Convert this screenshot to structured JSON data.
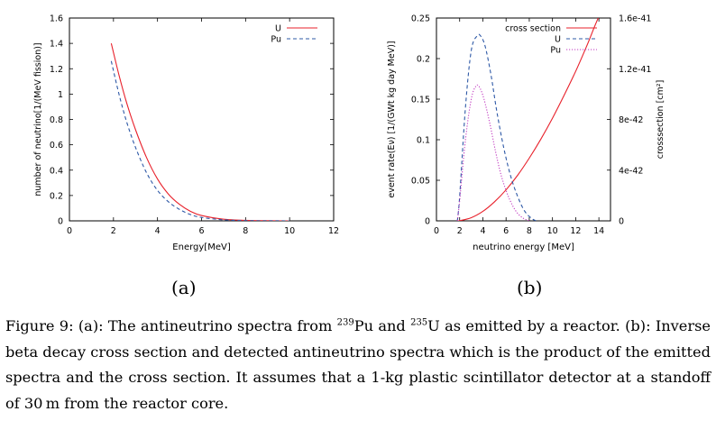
{
  "chart_data": [
    {
      "type": "line",
      "panel_label": "(a)",
      "xlabel": "Energy[MeV]",
      "ylabel": "number of neutrino[1/(MeV fission)]",
      "xlim": [
        0,
        12
      ],
      "ylim": [
        0,
        1.6
      ],
      "xticks": [
        "0",
        "2",
        "4",
        "6",
        "8",
        "10",
        "12"
      ],
      "yticks": [
        "0",
        "0.2",
        "0.4",
        "0.6",
        "0.8",
        "1",
        "1.2",
        "1.4",
        "1.6"
      ],
      "legend_position": "top-right",
      "series": [
        {
          "name": "U",
          "color": "#e8212b",
          "dash": "solid",
          "x": [
            1.9,
            2.25,
            2.6,
            3.0,
            3.5,
            4.0,
            4.5,
            5.0,
            5.5,
            6.0,
            7.0,
            8.0,
            9.0,
            10.0
          ],
          "y": [
            1.4,
            1.15,
            0.93,
            0.72,
            0.5,
            0.33,
            0.21,
            0.13,
            0.075,
            0.042,
            0.013,
            0.004,
            0.001,
            0.0
          ]
        },
        {
          "name": "Pu",
          "color": "#2d58a6",
          "dash": "dashed",
          "x": [
            1.9,
            2.25,
            2.6,
            3.0,
            3.5,
            4.0,
            4.5,
            5.0,
            5.5,
            6.0,
            7.0,
            8.0,
            9.0,
            10.0
          ],
          "y": [
            1.26,
            1.0,
            0.78,
            0.58,
            0.38,
            0.24,
            0.15,
            0.09,
            0.05,
            0.027,
            0.008,
            0.002,
            0.0005,
            0.0
          ]
        }
      ]
    },
    {
      "type": "line",
      "panel_label": "(b)",
      "xlabel": "neutrino energy [MeV]",
      "ylabel": "event rate(Eν) [1/(GWt kg day MeV)]",
      "y2label": "crosssection [cm²]",
      "xlim": [
        0,
        15
      ],
      "ylim": [
        0,
        0.25
      ],
      "y2lim": [
        0,
        1.6e-41
      ],
      "xticks": [
        "0",
        "2",
        "4",
        "6",
        "8",
        "10",
        "12",
        "14"
      ],
      "yticks": [
        "0",
        "0.05",
        "0.1",
        "0.15",
        "0.2",
        "0.25"
      ],
      "y2ticks": [
        "0",
        "4e-42",
        "8e-42",
        "1.2e-41",
        "1.6e-41"
      ],
      "legend_position": "top-right",
      "series": [
        {
          "name": "cross section",
          "color": "#e8212b",
          "dash": "solid",
          "axis": "right",
          "x": [
            1.8,
            2,
            3,
            4,
            5,
            6,
            7,
            8,
            9,
            10,
            11,
            12,
            13,
            14,
            15
          ],
          "y": [
            0,
            1.2e-44,
            2.5e-43,
            7.5e-43,
            1.5e-42,
            2.45e-42,
            3.6e-42,
            4.95e-42,
            6.45e-42,
            8.1e-42,
            9.9e-42,
            1.18e-41,
            1.39e-41,
            1.61e-41,
            1.75e-41
          ]
        },
        {
          "name": "U",
          "color": "#2d58a6",
          "dash": "dashed",
          "axis": "left",
          "x": [
            1.8,
            2.0,
            2.5,
            3.0,
            3.5,
            3.8,
            4.2,
            4.7,
            5.2,
            5.8,
            6.4,
            7.0,
            7.6,
            8.2,
            8.6
          ],
          "y": [
            0,
            0.03,
            0.14,
            0.21,
            0.228,
            0.228,
            0.215,
            0.18,
            0.135,
            0.09,
            0.055,
            0.03,
            0.012,
            0.003,
            0.0
          ]
        },
        {
          "name": "Pu",
          "color": "#c13bc1",
          "dash": "dotted",
          "axis": "left",
          "x": [
            1.8,
            2.0,
            2.5,
            3.0,
            3.4,
            3.7,
            4.1,
            4.6,
            5.1,
            5.6,
            6.2,
            6.8,
            7.4,
            8.0
          ],
          "y": [
            0,
            0.025,
            0.1,
            0.15,
            0.166,
            0.165,
            0.15,
            0.12,
            0.085,
            0.055,
            0.03,
            0.013,
            0.004,
            0.0
          ]
        }
      ]
    }
  ],
  "caption": {
    "fig_label": "Figure 9:",
    "part1": " (a): The antineutrino spectra from ",
    "sup1": "239",
    "iso1": "Pu and ",
    "sup2": "235",
    "part2": "U as emitted by a reactor. (b): Inverse beta decay cross section and detected antineutrino spectra which is the product of the emitted spectra and the cross section. It assumes that a 1-kg plastic scintillator detector at a standoff of 30 m from the reactor core."
  }
}
